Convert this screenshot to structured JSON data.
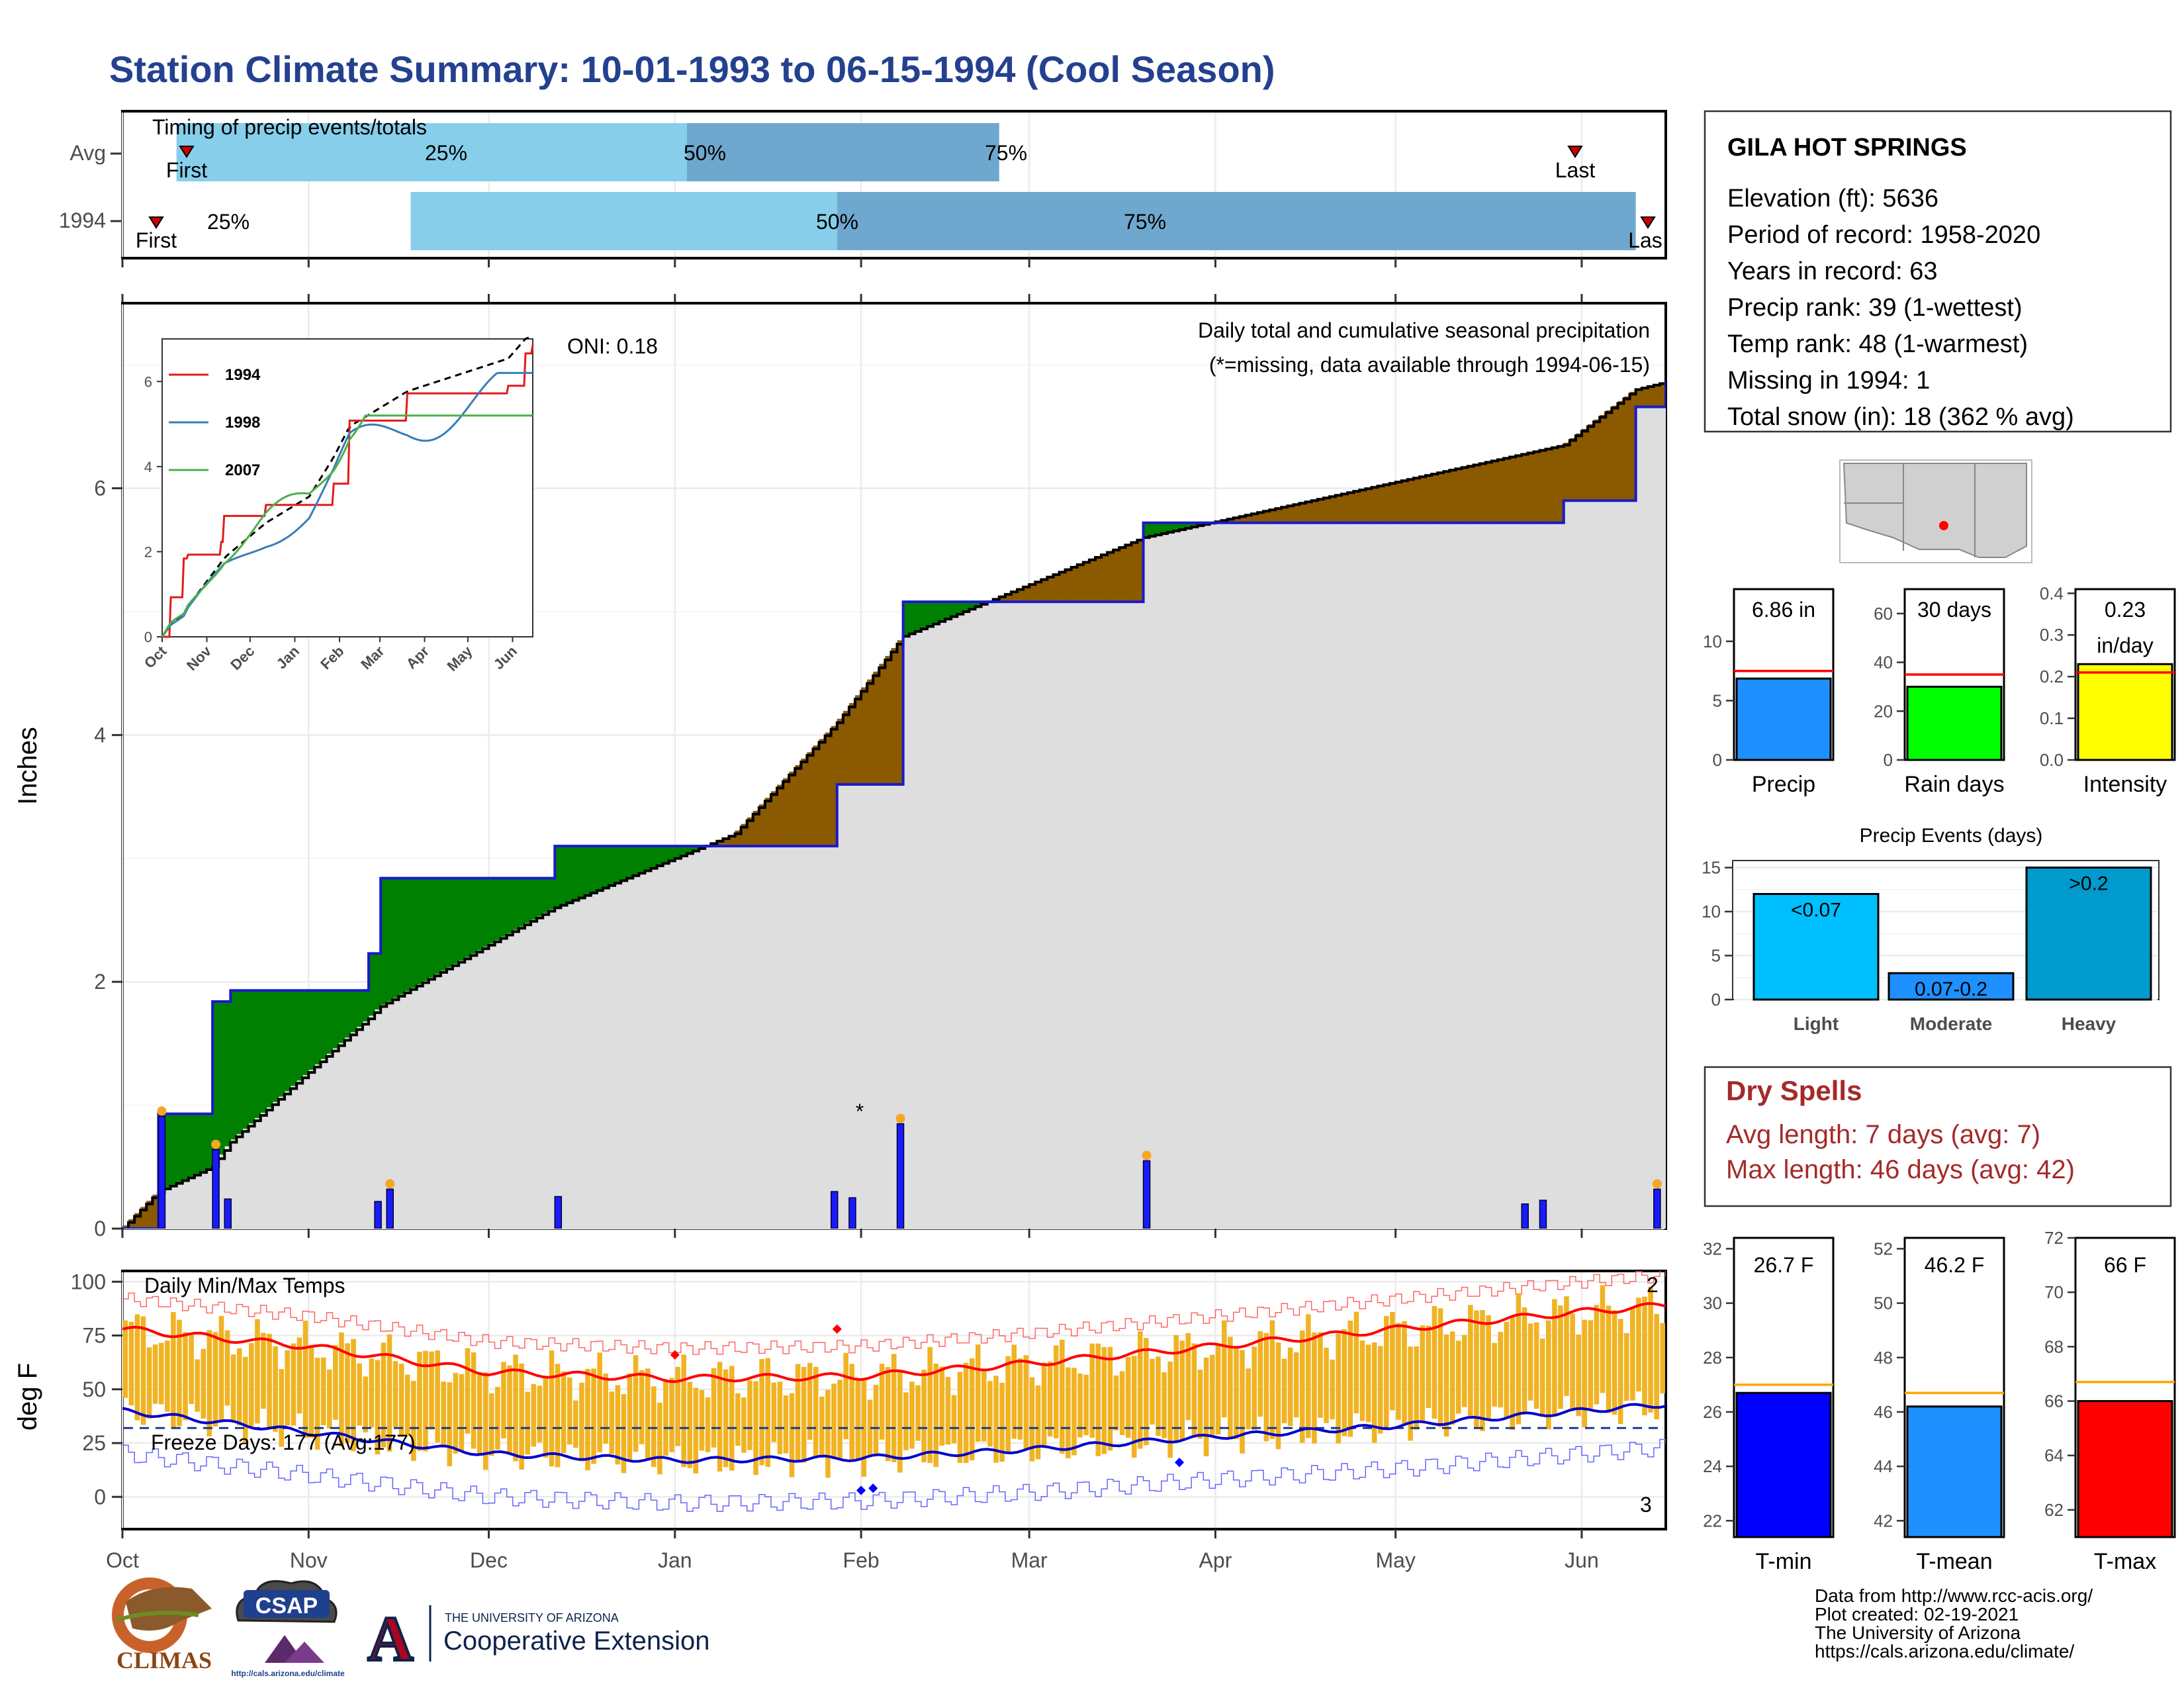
{
  "title": "Station Climate Summary: 10-01-1993 to 06-15-1994 (Cool Season)",
  "colors": {
    "title": "#24418f",
    "q_light": "#87ceeb",
    "q_dark": "#6fa8cf",
    "wetter": "#008000",
    "drier": "#8b5a00",
    "cum_bg": "#dedede",
    "daily_bar": "#1a1aff",
    "temp_bar": "#f0b323",
    "tmax_line": "#ff0000",
    "tmin_line": "#0000cc",
    "precip_bar": "#1e90ff",
    "raindays_bar": "#00ff00",
    "intensity_bar": "#ffff00",
    "light_bar": "#00bfff",
    "moderate_bar": "#1e90ff",
    "heavy_bar": "#009acd",
    "tmin_bar": "#0000ff",
    "tmean_bar": "#1e90ff",
    "tmax_bar": "#ff0000",
    "dry_text": "#a52a2a"
  },
  "timing": {
    "title": "Timing of precip events/totals",
    "rows": [
      "Avg",
      "1994"
    ],
    "avg": {
      "first_label": "First",
      "last_label": "Last",
      "q25": "25%",
      "q50": "50%",
      "q75": "75%"
    },
    "y1994": {
      "first_label": "First",
      "last_label": "Las",
      "q25": "25%",
      "q50": "50%",
      "q75": "75%"
    }
  },
  "station": {
    "name": "GILA HOT SPRINGS",
    "lines": [
      "Elevation (ft): 5636",
      "Period of record: 1958-2020",
      "Years in record: 63",
      "Precip rank: 39 (1-wettest)",
      "Temp rank: 48 (1-warmest)",
      "Missing in 1994: 1",
      "Total snow (in): 18 (362 % avg)"
    ]
  },
  "precip_panel": {
    "ylabel": "Inches",
    "yticks": [
      "0",
      "2",
      "4",
      "6"
    ],
    "oni": "ONI: 0.18",
    "note1": "Daily total and cumulative seasonal precipitation",
    "note2": "(*=missing, data available through 1994-06-15)"
  },
  "inset": {
    "yticks": [
      "0",
      "2",
      "4",
      "6"
    ],
    "xticks": [
      "Oct",
      "Nov",
      "Dec",
      "Jan",
      "Feb",
      "Mar",
      "Apr",
      "May",
      "Jun"
    ],
    "legend": [
      "1994",
      "1998",
      "2007"
    ]
  },
  "temp_panel": {
    "ylabel": "deg F",
    "yticks": [
      "0",
      "25",
      "50",
      "75",
      "100"
    ],
    "title": "Daily Min/Max Temps",
    "freeze": "Freeze Days: 177 (Avg:177)",
    "rec_high": "2",
    "rec_low": "3"
  },
  "months": [
    "Oct",
    "Nov",
    "Dec",
    "Jan",
    "Feb",
    "Mar",
    "Apr",
    "May",
    "Jun"
  ],
  "season_bars": {
    "precip": {
      "value_label": "6.86 in",
      "label": "Precip",
      "yticks": [
        "0",
        "5",
        "10"
      ]
    },
    "raindays": {
      "value_label": "30 days",
      "label": "Rain days",
      "yticks": [
        "0",
        "20",
        "40",
        "60"
      ]
    },
    "intensity": {
      "value_label_1": "0.23",
      "value_label_2": "in/day",
      "label": "Intensity",
      "yticks": [
        "0.0",
        "0.1",
        "0.2",
        "0.3",
        "0.4"
      ]
    }
  },
  "events": {
    "title": "Precip Events (days)",
    "yticks": [
      "0",
      "5",
      "10",
      "15"
    ],
    "categories": [
      "Light",
      "Moderate",
      "Heavy"
    ],
    "bar_labels": [
      "<0.07",
      "0.07-0.2",
      ">0.2"
    ]
  },
  "dry_spells": {
    "title": "Dry Spells",
    "avg": "Avg length: 7 days (avg: 7)",
    "max": "Max length: 46 days (avg: 42)"
  },
  "temp_bars": {
    "tmin": {
      "value_label": "26.7 F",
      "label": "T-min",
      "yticks": [
        "22",
        "24",
        "26",
        "28",
        "30",
        "32"
      ]
    },
    "tmean": {
      "value_label": "46.2 F",
      "label": "T-mean",
      "yticks": [
        "42",
        "44",
        "46",
        "48",
        "50",
        "52"
      ]
    },
    "tmax": {
      "value_label": "66 F",
      "label": "T-max",
      "yticks": [
        "62",
        "64",
        "66",
        "68",
        "70",
        "72"
      ]
    }
  },
  "footer": {
    "lines": [
      "Data from http://www.rcc-acis.org/",
      "Plot created: 02-19-2021",
      "The University of Arizona",
      "https://cals.arizona.edu/climate/"
    ],
    "climas": "CLIMAS",
    "csap": "CSAP",
    "csap_url": "http://cals.arizona.edu/climate",
    "ua_top": "THE UNIVERSITY OF ARIZONA",
    "ua_bottom": "Cooperative Extension"
  },
  "chart_data": [
    {
      "type": "bar",
      "title": "Timing of precip events/totals",
      "categories": [
        "Avg",
        "1994"
      ],
      "series": [
        {
          "name": "Avg",
          "values": [
            [
              "10-10",
              "01-03",
              "02-24"
            ]
          ]
        },
        {
          "name": "1994",
          "values": [
            [
              "11-18",
              "01-28",
              "06-10"
            ]
          ]
        }
      ]
    },
    {
      "type": "area",
      "title": "Daily total and cumulative seasonal precipitation",
      "ylabel": "Inches",
      "ylim": [
        0,
        7.5
      ],
      "x": [
        "10-01",
        "10-07",
        "10-16",
        "10-19",
        "11-11",
        "11-13",
        "12-12",
        "01-11",
        "01-28",
        "02-08",
        "03-20",
        "05-29",
        "06-10",
        "06-15"
      ],
      "series": [
        {
          "name": "1994 cumulative",
          "values": [
            0,
            0.93,
            1.84,
            1.93,
            2.23,
            2.84,
            3.1,
            3.1,
            3.6,
            5.08,
            5.72,
            5.9,
            6.66,
            6.86
          ]
        },
        {
          "name": "Average cumulative",
          "values": [
            0,
            0.3,
            0.5,
            0.7,
            1.7,
            1.8,
            2.6,
            3.2,
            4.1,
            4.8,
            5.6,
            6.35,
            6.8,
            6.86
          ]
        }
      ],
      "daily": [
        {
          "x": "10-07",
          "y": 0.91
        },
        {
          "x": "10-16",
          "y": 0.64
        },
        {
          "x": "10-18",
          "y": 0.24
        },
        {
          "x": "11-12",
          "y": 0.22
        },
        {
          "x": "11-14",
          "y": 0.32
        },
        {
          "x": "12-12",
          "y": 0.26
        },
        {
          "x": "01-27",
          "y": 0.3
        },
        {
          "x": "01-30",
          "y": 0.25
        },
        {
          "x": "02-07",
          "y": 0.85
        },
        {
          "x": "03-20",
          "y": 0.55
        },
        {
          "x": "05-22",
          "y": 0.2
        },
        {
          "x": "05-25",
          "y": 0.23
        },
        {
          "x": "06-13",
          "y": 0.32
        }
      ],
      "oni": 0.18
    },
    {
      "type": "line",
      "title": "Daily Min/Max Temps",
      "ylabel": "deg F",
      "ylim": [
        -15,
        105
      ],
      "x": [
        "10-01",
        "11-01",
        "12-01",
        "01-01",
        "02-01",
        "03-01",
        "04-01",
        "05-01",
        "06-01",
        "06-15"
      ],
      "series": [
        {
          "name": "Avg max",
          "values": [
            78,
            70,
            58,
            55,
            56,
            62,
            70,
            78,
            86,
            89
          ]
        },
        {
          "name": "Avg min",
          "values": [
            40,
            30,
            20,
            17,
            18,
            22,
            28,
            33,
            40,
            43
          ]
        }
      ],
      "freeze_days": 177
    }
  ]
}
